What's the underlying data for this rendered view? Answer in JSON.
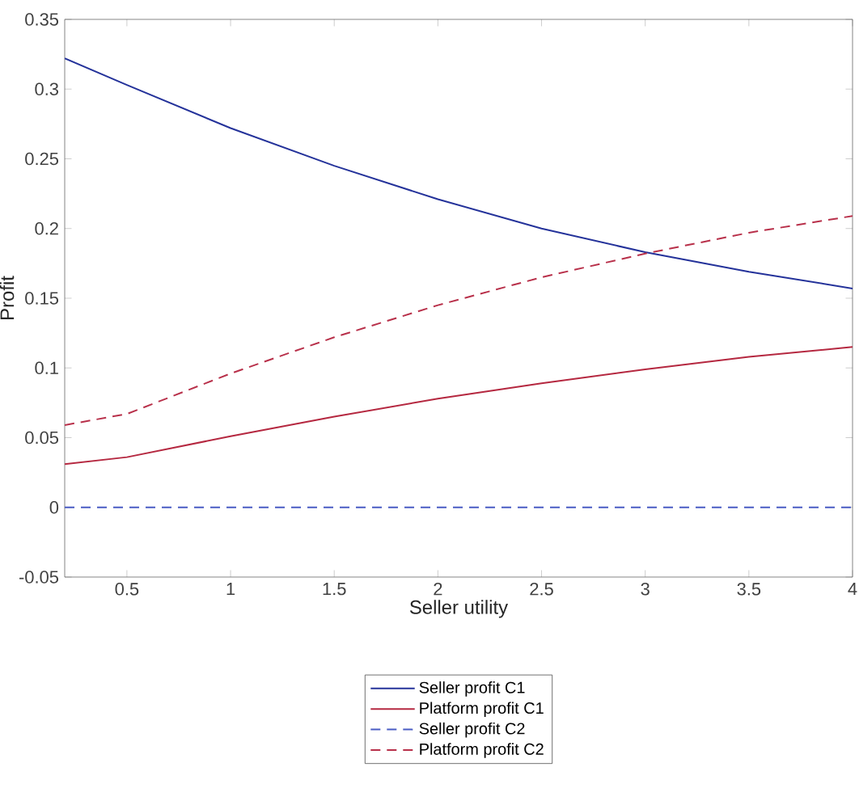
{
  "chart_data": {
    "type": "line",
    "xlabel": "Seller utility",
    "ylabel": "Profit",
    "x": [
      0.2,
      0.5,
      1,
      1.5,
      2,
      2.5,
      3,
      3.5,
      4
    ],
    "series": [
      {
        "name": "Seller profit C1",
        "color": "#24329a",
        "line_style": "solid",
        "values": [
          0.322,
          0.303,
          0.272,
          0.245,
          0.221,
          0.2,
          0.183,
          0.169,
          0.157
        ]
      },
      {
        "name": "Platform profit C1",
        "color": "#b52840",
        "line_style": "solid",
        "values": [
          0.031,
          0.036,
          0.051,
          0.065,
          0.078,
          0.089,
          0.099,
          0.108,
          0.115
        ]
      },
      {
        "name": "Seller profit C2",
        "color": "#4a5cc4",
        "line_style": "dashed",
        "values": [
          0,
          0,
          0,
          0,
          0,
          0,
          0,
          0,
          0
        ]
      },
      {
        "name": "Platform profit C2",
        "color": "#b8304a",
        "line_style": "dashed",
        "values": [
          0.059,
          0.067,
          0.096,
          0.122,
          0.145,
          0.165,
          0.182,
          0.197,
          0.209
        ]
      }
    ],
    "xlim": [
      0.2,
      4
    ],
    "ylim": [
      -0.05,
      0.35
    ],
    "xticks": [
      0.5,
      1,
      1.5,
      2,
      2.5,
      3,
      3.5,
      4
    ],
    "yticks": [
      -0.05,
      0,
      0.05,
      0.1,
      0.15,
      0.2,
      0.25,
      0.3,
      0.35
    ],
    "grid": false,
    "legend": "bottom"
  }
}
